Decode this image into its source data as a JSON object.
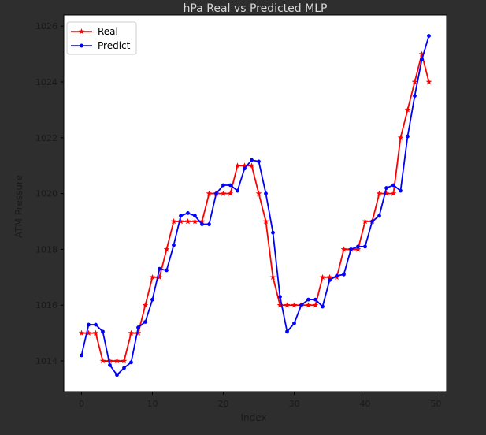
{
  "chart_data": {
    "type": "line",
    "title": "hPa Real vs Predicted MLP",
    "xlabel": "Index",
    "ylabel": "ATM Pressure",
    "xlim": [
      -2.5,
      51.5
    ],
    "ylim": [
      1012.9,
      1026.4
    ],
    "xticks": [
      0,
      10,
      20,
      30,
      40,
      50
    ],
    "yticks": [
      1014,
      1016,
      1018,
      1020,
      1022,
      1024,
      1026
    ],
    "grid": false,
    "legend_position": "top-left",
    "x": [
      0,
      1,
      2,
      3,
      4,
      5,
      6,
      7,
      8,
      9,
      10,
      11,
      12,
      13,
      14,
      15,
      16,
      17,
      18,
      19,
      20,
      21,
      22,
      23,
      24,
      25,
      26,
      27,
      28,
      29,
      30,
      31,
      32,
      33,
      34,
      35,
      36,
      37,
      38,
      39,
      40,
      41,
      42,
      43,
      44,
      45,
      46,
      47,
      48,
      49
    ],
    "series": [
      {
        "name": "Real",
        "color": "#ff0000",
        "marker": "star",
        "values": [
          1015,
          1015,
          1015,
          1014,
          1014,
          1014,
          1014,
          1015,
          1015,
          1016,
          1017,
          1017,
          1018,
          1019,
          1019,
          1019,
          1019,
          1019,
          1020,
          1020,
          1020,
          1020,
          1021,
          1021,
          1021,
          1020,
          1019,
          1017,
          1016,
          1016,
          1016,
          1016,
          1016,
          1016,
          1017,
          1017,
          1017,
          1018,
          1018,
          1018,
          1019,
          1019,
          1020,
          1020,
          1020,
          1022,
          1023,
          1024,
          1025,
          1024
        ]
      },
      {
        "name": "Predict",
        "color": "#0000ff",
        "marker": "dot",
        "values": [
          1014.2,
          1015.3,
          1015.3,
          1015.05,
          1013.85,
          1013.5,
          1013.75,
          1013.95,
          1015.2,
          1015.4,
          1016.2,
          1017.3,
          1017.25,
          1018.15,
          1019.2,
          1019.3,
          1019.2,
          1018.9,
          1018.9,
          1020,
          1020.3,
          1020.3,
          1020.1,
          1020.9,
          1021.2,
          1021.15,
          1020,
          1018.6,
          1016.3,
          1015.05,
          1015.35,
          1016,
          1016.2,
          1016.2,
          1015.95,
          1016.9,
          1017.05,
          1017.1,
          1018,
          1018.1,
          1018.1,
          1019,
          1019.2,
          1020.2,
          1020.3,
          1020.1,
          1022.05,
          1023.5,
          1024.8,
          1025.65
        ]
      }
    ]
  }
}
